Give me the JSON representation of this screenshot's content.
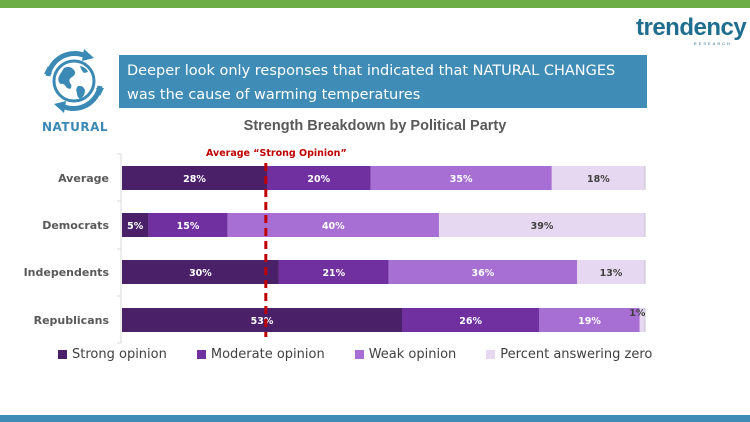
{
  "header": {
    "brand": "trendency",
    "brand_sub": "RESEARCH",
    "section_icon": "globe-recycle-icon",
    "section_label": "NATURAL",
    "banner_text": "Deeper look only responses that indicated that NATURAL CHANGES was the cause of warming temperatures",
    "colors": {
      "top_bar": "#6dad45",
      "bottom_bar": "#3f8cb6",
      "banner": "#3f8cb6"
    }
  },
  "chart_data": {
    "type": "bar",
    "orientation": "horizontal",
    "stacked": true,
    "title": "Strength Breakdown by Political Party",
    "xlabel": "",
    "ylabel": "",
    "xlim": [
      0,
      100
    ],
    "grid": false,
    "categories": [
      "Average",
      "Democrats",
      "Independents",
      "Republicans"
    ],
    "series": [
      {
        "name": "Strong opinion",
        "color": "#4a2069",
        "label_color": "#ffffff",
        "values": [
          28,
          5,
          30,
          53
        ],
        "labels": [
          "28%",
          "5%",
          "30%",
          "53%"
        ]
      },
      {
        "name": "Moderate opinion",
        "color": "#7030a0",
        "label_color": "#ffffff",
        "values": [
          20,
          15,
          21,
          26
        ],
        "labels": [
          "20%",
          "15%",
          "21%",
          "26%"
        ]
      },
      {
        "name": "Weak opinion",
        "color": "#a76fd3",
        "label_color": "#ffffff",
        "values": [
          35,
          40,
          36,
          19
        ],
        "labels": [
          "35%",
          "40%",
          "36%",
          "19%"
        ]
      },
      {
        "name": "Percent answering zero",
        "color": "#e5d8f0",
        "label_color": "#404040",
        "values": [
          18,
          39,
          13,
          1
        ],
        "labels": [
          "18%",
          "39%",
          "13%",
          "1%"
        ]
      }
    ],
    "reference_line": {
      "label": "Average “Strong Opinion”",
      "value": 27.5,
      "color": "#c00000",
      "style": "dashed"
    },
    "legend_position": "bottom"
  }
}
